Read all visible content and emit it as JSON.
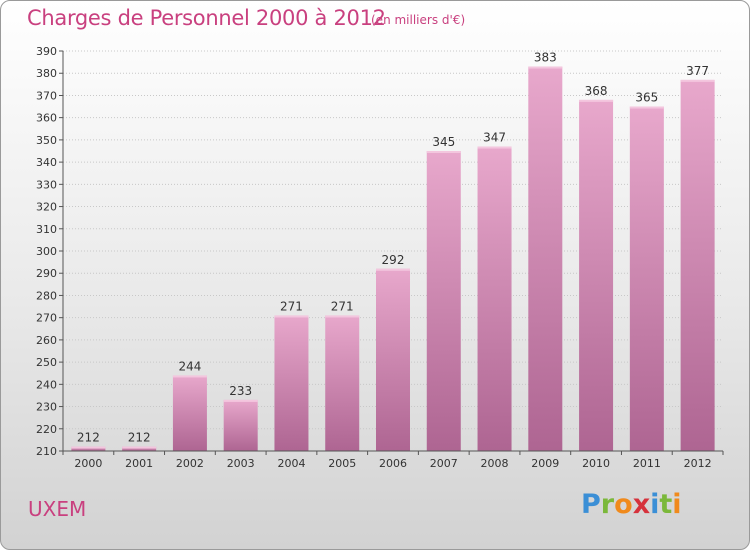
{
  "title": "Charges de Personnel 2000 à 2012",
  "subtitle": "(en milliers d'€)",
  "commune": "UXEM",
  "logo": {
    "text": "Proxiti",
    "letters": [
      "P",
      "r",
      "o",
      "x",
      "i",
      "t",
      "i"
    ],
    "colors": [
      "#3b8fd6",
      "#7bb83a",
      "#f08a1c",
      "#d6323c",
      "#3b8fd6",
      "#7bb83a",
      "#f08a1c"
    ]
  },
  "colors": {
    "accent": "#c9407f",
    "bar_top": "#e8a8cc",
    "bar_bottom": "#ae6592",
    "grid": "#c8c8c8"
  },
  "chart_data": {
    "type": "bar",
    "categories": [
      "2000",
      "2001",
      "2002",
      "2003",
      "2004",
      "2005",
      "2006",
      "2007",
      "2008",
      "2009",
      "2010",
      "2011",
      "2012"
    ],
    "values": [
      212,
      212,
      244,
      233,
      271,
      271,
      292,
      345,
      347,
      383,
      368,
      365,
      377
    ],
    "title": "Charges de Personnel 2000 à 2012",
    "xlabel": "",
    "ylabel": "",
    "ylim": [
      210,
      390
    ],
    "yticks": [
      210,
      220,
      230,
      240,
      250,
      260,
      270,
      280,
      290,
      300,
      310,
      320,
      330,
      340,
      350,
      360,
      370,
      380,
      390
    ],
    "grid": true,
    "legend": "none"
  }
}
